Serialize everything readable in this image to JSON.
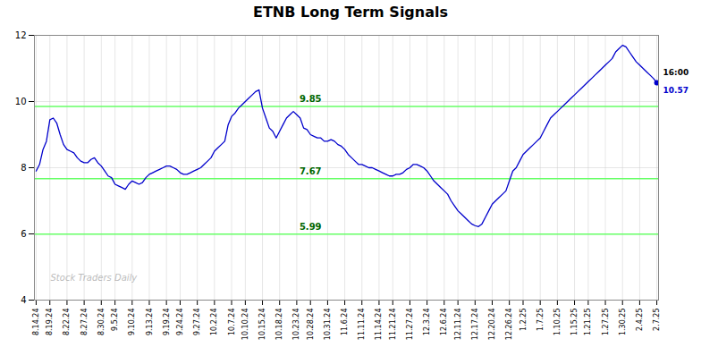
{
  "chart_data": {
    "type": "line",
    "title": "ETNB Long Term Signals",
    "categories": [
      "8.14.24",
      null,
      null,
      null,
      "8.19.24",
      null,
      null,
      null,
      null,
      "8.22.24",
      null,
      null,
      null,
      null,
      "8.27.24",
      null,
      null,
      null,
      null,
      "8.30.24",
      null,
      null,
      null,
      "9.5.24",
      null,
      null,
      null,
      null,
      "9.10.24",
      null,
      null,
      null,
      null,
      "9.13.24",
      null,
      null,
      null,
      null,
      "9.19.24",
      null,
      null,
      null,
      "9.24.24",
      null,
      null,
      null,
      null,
      "9.27.24",
      null,
      null,
      null,
      null,
      "10.2.24",
      null,
      null,
      null,
      null,
      "10.7.24",
      null,
      null,
      null,
      "10.10.24",
      null,
      null,
      null,
      null,
      "10.15.24",
      null,
      null,
      null,
      null,
      "10.18.24",
      null,
      null,
      null,
      null,
      "10.23.24",
      null,
      null,
      null,
      "10.28.24",
      null,
      null,
      null,
      null,
      "10.31.24",
      null,
      null,
      null,
      null,
      "11.6.24",
      null,
      null,
      null,
      null,
      "11.11.24",
      null,
      null,
      null,
      null,
      "11.14.24",
      null,
      null,
      null,
      "11.21.24",
      null,
      null,
      null,
      null,
      "11.27.24",
      null,
      null,
      null,
      null,
      "12.3.24",
      null,
      null,
      null,
      null,
      "12.6.24",
      null,
      null,
      null,
      "12.11.24",
      null,
      null,
      null,
      null,
      "12.17.24",
      null,
      null,
      null,
      null,
      "12.20.24",
      null,
      null,
      null,
      null,
      "12.26.24",
      null,
      null,
      null,
      "1.2.25",
      null,
      null,
      null,
      null,
      "1.7.25",
      null,
      null,
      null,
      null,
      "1.10.25",
      null,
      null,
      null,
      null,
      "1.15.25",
      null,
      null,
      null,
      "1.21.25",
      null,
      null,
      null,
      null,
      "1.27.25",
      null,
      null,
      null,
      null,
      "1.30.25",
      null,
      null,
      null,
      null,
      "2.4.25",
      null,
      null,
      null,
      null,
      "2.7.25"
    ],
    "values": [
      7.9,
      8.1,
      8.55,
      8.8,
      9.45,
      9.5,
      9.35,
      9.0,
      8.7,
      8.55,
      8.5,
      8.45,
      8.3,
      8.2,
      8.15,
      8.15,
      8.25,
      8.3,
      8.15,
      8.05,
      7.9,
      7.75,
      7.7,
      7.5,
      7.45,
      7.4,
      7.35,
      7.5,
      7.6,
      7.55,
      7.5,
      7.55,
      7.7,
      7.8,
      7.85,
      7.9,
      7.95,
      8.0,
      8.05,
      8.05,
      8.0,
      7.95,
      7.85,
      7.8,
      7.8,
      7.85,
      7.9,
      7.95,
      8.0,
      8.1,
      8.2,
      8.3,
      8.5,
      8.6,
      8.7,
      8.8,
      9.3,
      9.55,
      9.65,
      9.8,
      9.9,
      10.0,
      10.1,
      10.2,
      10.3,
      10.35,
      9.8,
      9.5,
      9.2,
      9.1,
      8.9,
      9.1,
      9.3,
      9.5,
      9.6,
      9.7,
      9.6,
      9.5,
      9.2,
      9.15,
      9.0,
      8.95,
      8.9,
      8.9,
      8.8,
      8.8,
      8.85,
      8.8,
      8.7,
      8.65,
      8.55,
      8.4,
      8.3,
      8.2,
      8.1,
      8.1,
      8.05,
      8.0,
      8.0,
      7.95,
      7.9,
      7.85,
      7.8,
      7.75,
      7.75,
      7.8,
      7.8,
      7.85,
      7.95,
      8.0,
      8.1,
      8.1,
      8.05,
      8.0,
      7.9,
      7.75,
      7.6,
      7.5,
      7.4,
      7.3,
      7.2,
      7.0,
      6.85,
      6.7,
      6.6,
      6.5,
      6.4,
      6.3,
      6.25,
      6.22,
      6.3,
      6.5,
      6.7,
      6.9,
      7.0,
      7.1,
      7.2,
      7.3,
      7.6,
      7.9,
      8.0,
      8.2,
      8.4,
      8.5,
      8.6,
      8.7,
      8.8,
      8.9,
      9.1,
      9.3,
      9.5,
      9.6,
      9.7,
      9.8,
      9.9,
      10.0,
      10.1,
      10.2,
      10.3,
      10.4,
      10.5,
      10.6,
      10.7,
      10.8,
      10.9,
      11.0,
      11.1,
      11.2,
      11.3,
      11.5,
      11.6,
      11.7,
      11.65,
      11.5,
      11.35,
      11.2,
      11.1,
      11.0,
      10.9,
      10.8,
      10.7,
      10.57
    ],
    "color": "#0000cc",
    "ylim": [
      4,
      12
    ],
    "yticks": [
      4,
      6,
      8,
      10,
      12
    ],
    "grid": true,
    "hlines": [
      7.67,
      5.99,
      9.85
    ],
    "hline_color": "#66ff66",
    "last_value": 10.57,
    "last_label": "16:00",
    "watermark": "Stock Traders Daily"
  }
}
